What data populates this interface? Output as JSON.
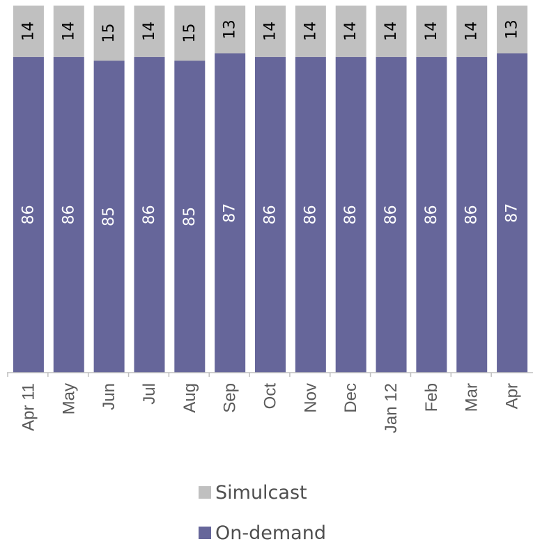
{
  "chart_data": {
    "type": "bar",
    "stacked": true,
    "categories": [
      "Apr 11",
      "May",
      "Jun",
      "Jul",
      "Aug",
      "Sep",
      "Oct",
      "Nov",
      "Dec",
      "Jan 12",
      "Feb",
      "Mar",
      "Apr"
    ],
    "series": [
      {
        "name": "On-demand",
        "color": "#66669a",
        "values": [
          86,
          86,
          85,
          86,
          85,
          87,
          86,
          86,
          86,
          86,
          86,
          86,
          87
        ]
      },
      {
        "name": "Simulcast",
        "color": "#c0c0c0",
        "values": [
          14,
          14,
          15,
          14,
          15,
          13,
          14,
          14,
          14,
          14,
          14,
          14,
          13
        ]
      }
    ],
    "ylim": [
      0,
      100
    ],
    "grid": false,
    "legend_position": "bottom",
    "title": "",
    "xlabel": "",
    "ylabel": ""
  },
  "legend": {
    "items": [
      {
        "label": "Simulcast",
        "color": "#c0c0c0"
      },
      {
        "label": "On-demand",
        "color": "#66669a"
      }
    ]
  }
}
